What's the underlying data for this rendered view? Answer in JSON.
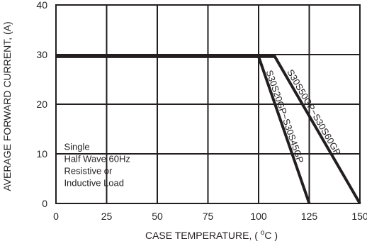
{
  "chart_data": {
    "type": "line",
    "title": "",
    "xlabel": "CASE TEMPERATURE, ( °C )",
    "xlabel_parts": {
      "before": "CASE TEMPERATURE, ( ",
      "sup": "o",
      "after": "C )"
    },
    "ylabel": "AVERAGE FORWARD CURRENT, (A)",
    "xlim": [
      0,
      150
    ],
    "ylim": [
      0,
      40
    ],
    "xticks": [
      "0",
      "25",
      "50",
      "75",
      "100",
      "125",
      "150"
    ],
    "yticks": [
      "0",
      "10",
      "20",
      "30",
      "40"
    ],
    "grid": true,
    "series": [
      {
        "name": "S30S20GP~S30S45GP",
        "x": [
          0,
          100,
          125
        ],
        "y": [
          29.6,
          29.6,
          0
        ]
      },
      {
        "name": "S30S50GP~S30S60GP",
        "x": [
          0,
          108,
          150
        ],
        "y": [
          29.6,
          29.6,
          0
        ]
      }
    ],
    "annotation": {
      "lines": [
        "Single",
        "Half Wave 60Hz",
        "Resistive or",
        "Inductive Load"
      ]
    }
  }
}
